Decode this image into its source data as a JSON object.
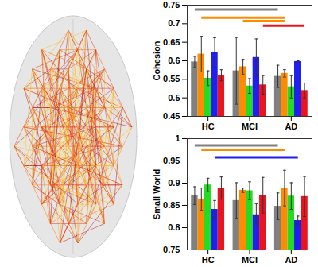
{
  "chart_data": [
    {
      "type": "bar",
      "ylabel": "Cohesion",
      "categories": [
        "HC",
        "MCI",
        "AD"
      ],
      "series": [
        {
          "color": "#808080",
          "values": [
            0.597,
            0.573,
            0.558
          ],
          "errors": [
            0.015,
            0.09,
            0.03
          ]
        },
        {
          "color": "#ff8c00",
          "values": [
            0.618,
            0.584,
            0.566
          ],
          "errors": [
            0.048,
            0.02,
            0.01
          ]
        },
        {
          "color": "#22dd22",
          "values": [
            0.553,
            0.532,
            0.53
          ],
          "errors": [
            0.02,
            0.02,
            0.03
          ]
        },
        {
          "color": "#1f1ff0",
          "values": [
            0.622,
            0.609,
            0.598
          ],
          "errors": [
            0.04,
            0.05,
            0.002
          ]
        },
        {
          "color": "#e8141e",
          "values": [
            0.561,
            0.535,
            0.52
          ],
          "errors": [
            0.015,
            0.025,
            0.02
          ]
        }
      ],
      "ylim": [
        0.45,
        0.75
      ],
      "yticks": [
        0.45,
        0.5,
        0.55,
        0.6,
        0.65,
        0.7,
        0.75
      ],
      "significance": [
        {
          "color": "#808080",
          "from": "HC",
          "to": "AD",
          "y": 0.738
        },
        {
          "color": "#ff8c00",
          "from": "HC",
          "to": "AD",
          "y": 0.716
        },
        {
          "color": "#ff8c00",
          "from": "MCI",
          "to": "AD",
          "y": 0.707
        },
        {
          "color": "#e8141e",
          "from": "MCI",
          "to": "AD",
          "y": 0.695
        }
      ]
    },
    {
      "type": "bar",
      "ylabel": "Small World",
      "categories": [
        "HC",
        "MCI",
        "AD"
      ],
      "series": [
        {
          "color": "#808080",
          "values": [
            0.872,
            0.861,
            0.848
          ],
          "errors": [
            0.02,
            0.04,
            0.03
          ]
        },
        {
          "color": "#ff8c00",
          "values": [
            0.864,
            0.884,
            0.889
          ],
          "errors": [
            0.025,
            0.005,
            0.04
          ]
        },
        {
          "color": "#22dd22",
          "values": [
            0.896,
            0.883,
            0.871
          ],
          "errors": [
            0.015,
            0.02,
            0.03
          ]
        },
        {
          "color": "#1f1ff0",
          "values": [
            0.841,
            0.829,
            0.816
          ],
          "errors": [
            0.02,
            0.025,
            0.01
          ]
        },
        {
          "color": "#e8141e",
          "values": [
            0.889,
            0.873,
            0.87
          ],
          "errors": [
            0.025,
            0.04,
            0.045
          ]
        }
      ],
      "ylim": [
        0.75,
        1
      ],
      "yticks": [
        0.75,
        0.8,
        0.85,
        0.9,
        0.95,
        1
      ],
      "significance": [
        {
          "color": "#808080",
          "from": "HC",
          "to": "AD",
          "y": 0.985
        },
        {
          "color": "#ff8c00",
          "from": "HC",
          "to": "AD",
          "y": 0.975
        },
        {
          "color": "#1f1ff0",
          "from": "HC",
          "to": "AD",
          "y": 0.958
        }
      ]
    }
  ]
}
